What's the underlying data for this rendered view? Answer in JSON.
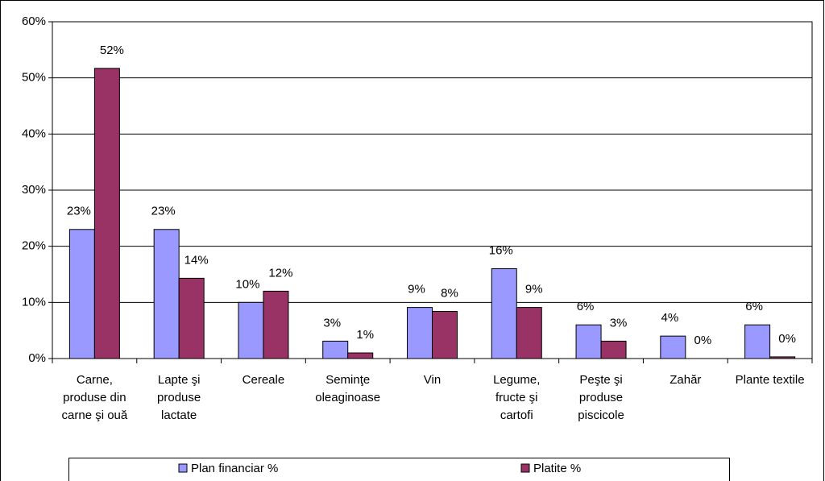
{
  "chart_data": {
    "type": "bar",
    "categories": [
      "Carne, produse din carne şi ouă",
      "Lapte şi produse lactate",
      "Cereale",
      "Seminţe oleaginoase",
      "Vin",
      "Legume, fructe şi cartofi",
      "Peşte şi produse piscicole",
      "Zahăr",
      "Plante textile"
    ],
    "series": [
      {
        "name": "Plan financiar %",
        "color": "#9999ff",
        "values": [
          23,
          23,
          10,
          3.1,
          9.1,
          16,
          6,
          4,
          6
        ],
        "value_labels": [
          "23%",
          "23%",
          "10%",
          "3%",
          "9%",
          "16%",
          "6%",
          "4%",
          "6%"
        ]
      },
      {
        "name": "Platite %",
        "color": "#993366",
        "values": [
          51.7,
          14.3,
          12,
          1,
          8.4,
          9.1,
          3.1,
          0,
          0.3
        ],
        "value_labels": [
          "52%",
          "14%",
          "12%",
          "1%",
          "8%",
          "9%",
          "3%",
          "0%",
          "0%"
        ]
      }
    ],
    "ylim": [
      0,
      60
    ],
    "yticks": [
      {
        "value": 0,
        "label": "0%"
      },
      {
        "value": 10,
        "label": "10%"
      },
      {
        "value": 20,
        "label": "20%"
      },
      {
        "value": 30,
        "label": "30%"
      },
      {
        "value": 40,
        "label": "40%"
      },
      {
        "value": 50,
        "label": "50%"
      },
      {
        "value": 60,
        "label": "60%"
      }
    ],
    "grid": true,
    "legend": "bottom"
  }
}
